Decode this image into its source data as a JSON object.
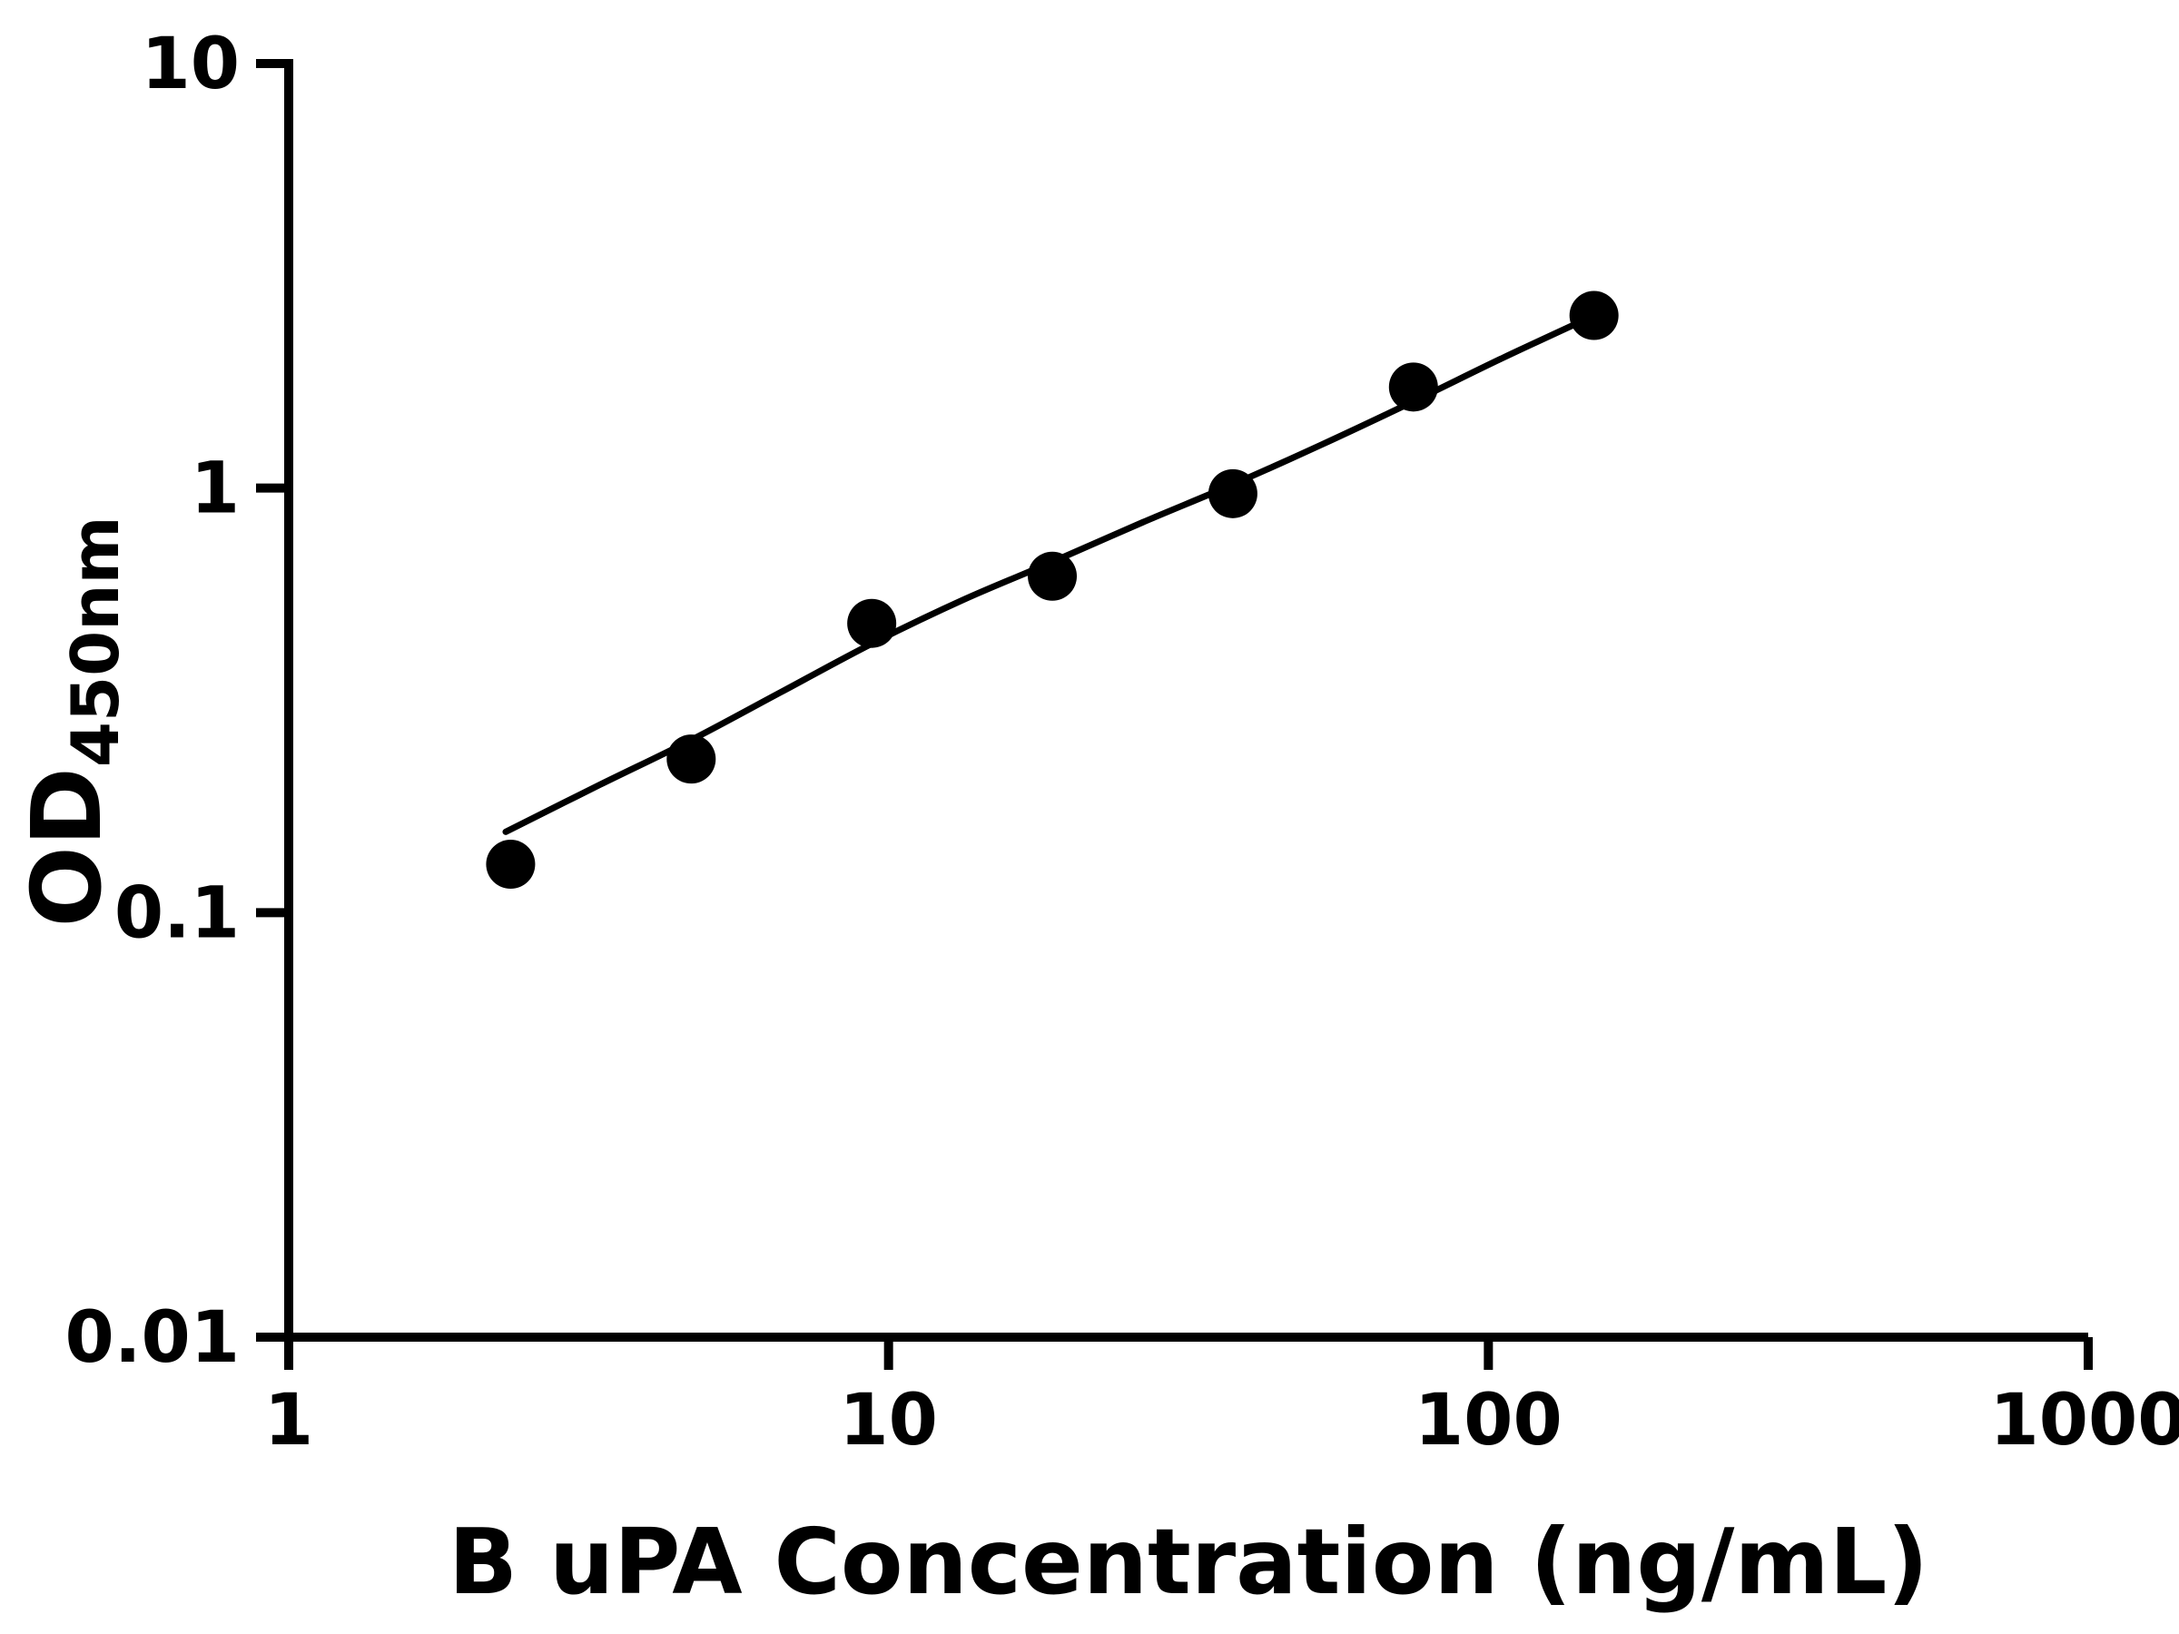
{
  "figure": {
    "background": "#ffffff"
  },
  "chart_data": {
    "type": "scatter",
    "title": "",
    "xlabel": "B uPA Concentration (ng/mL)",
    "ylabel_main": "OD",
    "ylabel_sub": "450nm",
    "x_scale": "log10",
    "y_scale": "log10",
    "xlim": [
      1,
      1000
    ],
    "ylim": [
      0.01,
      10
    ],
    "x_ticks": [
      1,
      10,
      100,
      1000
    ],
    "x_tick_labels": [
      "1",
      "10",
      "100",
      "1000"
    ],
    "y_ticks": [
      0.01,
      0.1,
      1,
      10
    ],
    "y_tick_labels": [
      "0.01",
      "0.1",
      "1",
      "10"
    ],
    "grid": false,
    "legend": false,
    "marker": "filled-circle",
    "marker_color": "#000000",
    "line_color": "#000000",
    "axis_color": "#000000",
    "points": [
      {
        "x": 2.344,
        "y": 0.13
      },
      {
        "x": 4.688,
        "y": 0.23
      },
      {
        "x": 9.375,
        "y": 0.48
      },
      {
        "x": 18.75,
        "y": 0.62
      },
      {
        "x": 37.5,
        "y": 0.97
      },
      {
        "x": 75,
        "y": 1.73
      },
      {
        "x": 150,
        "y": 2.55
      }
    ],
    "fit_curve": {
      "x": [
        2.3,
        3.3,
        4.688,
        6.6,
        9.375,
        13.3,
        18.75,
        26.5,
        37.5,
        53,
        75,
        106,
        150
      ],
      "y": [
        0.155,
        0.2,
        0.255,
        0.33,
        0.43,
        0.545,
        0.67,
        0.83,
        1.02,
        1.27,
        1.6,
        2.03,
        2.55
      ]
    }
  }
}
